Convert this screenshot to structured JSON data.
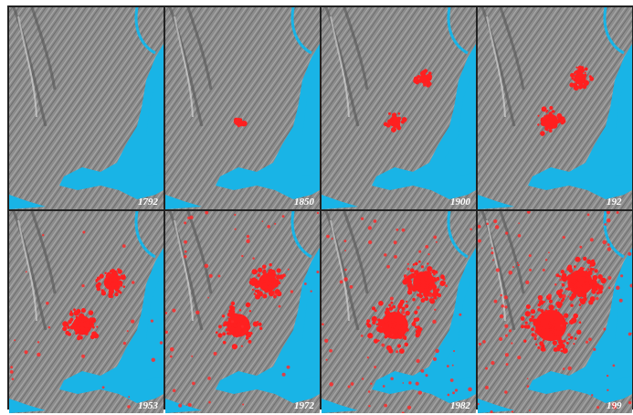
{
  "panels": [
    {
      "label": "1792"
    },
    {
      "label": "1850"
    },
    {
      "label": "1900"
    },
    {
      "label": "192"
    },
    {
      "label": "1953"
    },
    {
      "label": "1972"
    },
    {
      "label": "1982"
    },
    {
      "label": "199"
    }
  ]
}
